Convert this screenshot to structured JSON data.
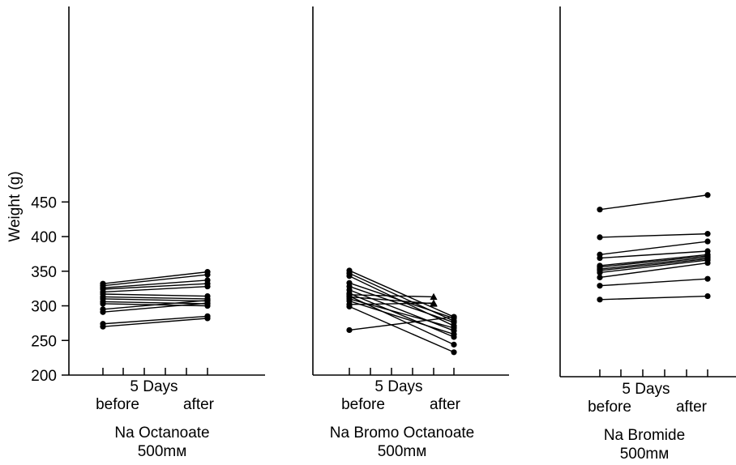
{
  "figure": {
    "ylabel": "Weight (g)",
    "yticks": [
      "200",
      "250",
      "300",
      "350",
      "400",
      "450"
    ],
    "panels": [
      {
        "period": "5 Days",
        "before": "before",
        "after": "after",
        "caption1": "Na Octanoate",
        "caption2": "500mм"
      },
      {
        "period": "5 Days",
        "before": "before",
        "after": "after",
        "caption1": "Na Bromo Octanoate",
        "caption2": "500mм"
      },
      {
        "period": "5 Days",
        "before": "before",
        "after": "after",
        "caption1": "Na Bromide",
        "caption2": "500mм"
      }
    ]
  },
  "chart_data": [
    {
      "type": "line",
      "title": "Na Octanoate 500mм",
      "ylabel": "Weight (g)",
      "ylim": [
        200,
        460
      ],
      "categories": [
        "before",
        "after"
      ],
      "pairs": [
        [
          332,
          349
        ],
        [
          329,
          345
        ],
        [
          326,
          337
        ],
        [
          324,
          332
        ],
        [
          320,
          328
        ],
        [
          317,
          314
        ],
        [
          313,
          310
        ],
        [
          310,
          307
        ],
        [
          306,
          303
        ],
        [
          303,
          300
        ],
        [
          295,
          308
        ],
        [
          291,
          304
        ],
        [
          274,
          285
        ],
        [
          270,
          282
        ]
      ]
    },
    {
      "type": "line",
      "title": "Na Bromo Octanoate 500mм",
      "ylabel": "Weight (g)",
      "ylim": [
        200,
        460
      ],
      "categories": [
        "before",
        "after"
      ],
      "pairs": [
        [
          351,
          284
        ],
        [
          347,
          278
        ],
        [
          343,
          271
        ],
        [
          333,
          282
        ],
        [
          328,
          276
        ],
        [
          323,
          264
        ],
        [
          318,
          255
        ],
        [
          314,
          244
        ],
        [
          310,
          268
        ],
        [
          307,
          259
        ],
        [
          299,
          233
        ],
        [
          265,
          284
        ]
      ],
      "triangle_series": [
        [
          313,
          303
        ],
        [
          316,
          313
        ],
        [
          302,
          304
        ]
      ]
    },
    {
      "type": "line",
      "title": "Na Bromide 500mм",
      "ylabel": "Weight (g)",
      "ylim": [
        200,
        460
      ],
      "categories": [
        "before",
        "after"
      ],
      "pairs": [
        [
          439,
          460
        ],
        [
          399,
          404
        ],
        [
          374,
          393
        ],
        [
          369,
          379
        ],
        [
          358,
          374
        ],
        [
          356,
          372
        ],
        [
          353,
          370
        ],
        [
          351,
          368
        ],
        [
          348,
          366
        ],
        [
          341,
          362
        ],
        [
          329,
          339
        ],
        [
          309,
          314
        ]
      ]
    }
  ]
}
